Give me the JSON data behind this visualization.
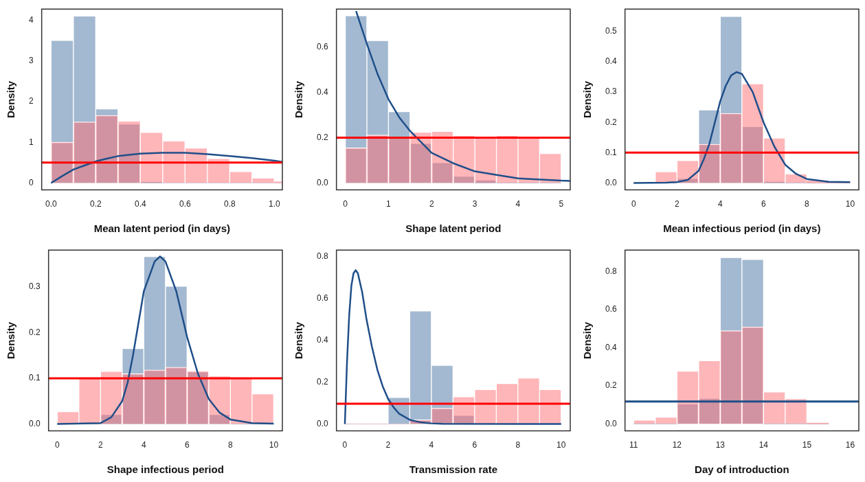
{
  "chart_data": [
    {
      "type": "histogram",
      "xlabel": "Mean latent period (in days)",
      "ylabel": "Density",
      "xlim": [
        -0.042,
        1.036
      ],
      "ylim": [
        -0.17,
        4.27
      ],
      "xticks": [
        {
          "value": 0,
          "label": "0.0"
        },
        {
          "value": 0.2,
          "label": "0.2"
        },
        {
          "value": 0.4,
          "label": "0.4"
        },
        {
          "value": 0.6,
          "label": "0.6"
        },
        {
          "value": 0.8,
          "label": "0.8"
        },
        {
          "value": 1,
          "label": "1.0"
        }
      ],
      "yticks": [
        0,
        1,
        2,
        3,
        4
      ],
      "bins": [
        0,
        0.1,
        0.2,
        0.3,
        0.4,
        0.5,
        0.6,
        0.7,
        0.8,
        0.9,
        1.0,
        1.1
      ],
      "series": [
        {
          "color": "#a3b9d1",
          "values": [
            3.5,
            4.1,
            1.82,
            1.45,
            0.02,
            0,
            0,
            0,
            0,
            0,
            0
          ]
        },
        {
          "color": "#ffb6b9",
          "values": [
            1.0,
            1.5,
            1.66,
            1.52,
            1.24,
            1.03,
            0.86,
            0.6,
            0.28,
            0.12,
            0.03
          ]
        },
        {
          "type": "line",
          "color": "#1f4e89",
          "x": [
            0,
            0.05,
            0.1,
            0.15,
            0.2,
            0.25,
            0.3,
            0.4,
            0.5,
            0.6,
            0.7,
            0.8,
            0.9,
            1.0,
            1.036
          ],
          "values": [
            0,
            0.17,
            0.33,
            0.43,
            0.53,
            0.6,
            0.66,
            0.72,
            0.74,
            0.74,
            0.71,
            0.66,
            0.61,
            0.55,
            0.52
          ]
        }
      ],
      "ref_lines": [
        {
          "axis": "y",
          "value": 0.5,
          "color": "#ff0000"
        }
      ]
    },
    {
      "type": "histogram",
      "xlabel": "Shape latent period",
      "ylabel": "Density",
      "xlim": [
        -0.205,
        5.21
      ],
      "ylim": [
        -0.031,
        0.769
      ],
      "xticks": [
        0,
        1,
        2,
        3,
        4,
        5
      ],
      "yticks": [
        {
          "value": 0,
          "label": "0.0"
        },
        {
          "value": 0.2,
          "label": "0.2"
        },
        {
          "value": 0.4,
          "label": "0.4"
        },
        {
          "value": 0.6,
          "label": "0.6"
        }
      ],
      "bins": [
        0,
        0.5,
        1,
        1.5,
        2,
        2.5,
        3,
        3.5,
        4,
        4.5,
        5
      ],
      "series": [
        {
          "color": "#a3b9d1",
          "values": [
            0.74,
            0.63,
            0.315,
            0.175,
            0.09,
            0.03,
            0.01,
            0,
            0,
            0
          ]
        },
        {
          "color": "#ffb6b9",
          "values": [
            0.155,
            0.212,
            0.2,
            0.224,
            0.228,
            0.21,
            0.205,
            0.21,
            0.203,
            0.13
          ]
        },
        {
          "type": "line",
          "color": "#1f4e89",
          "x": [
            0.25,
            0.5,
            0.75,
            1,
            1.25,
            1.5,
            2,
            2.5,
            3,
            4,
            5,
            5.21
          ],
          "values": [
            0.76,
            0.615,
            0.48,
            0.37,
            0.29,
            0.23,
            0.133,
            0.087,
            0.051,
            0.02,
            0.01,
            0.009
          ]
        }
      ],
      "ref_lines": [
        {
          "axis": "y",
          "value": 0.2,
          "color": "#ff0000"
        }
      ]
    },
    {
      "type": "histogram",
      "xlabel": "Mean infectious period (in days)",
      "ylabel": "Density",
      "xlim": [
        -0.4,
        10.4
      ],
      "ylim": [
        -0.023,
        0.574
      ],
      "xticks": [
        0,
        2,
        4,
        6,
        8,
        10
      ],
      "yticks": [
        {
          "value": 0,
          "label": "0.0"
        },
        {
          "value": 0.1,
          "label": "0.1"
        },
        {
          "value": 0.2,
          "label": "0.2"
        },
        {
          "value": 0.3,
          "label": "0.3"
        },
        {
          "value": 0.4,
          "label": "0.4"
        },
        {
          "value": 0.5,
          "label": "0.5"
        }
      ],
      "bins": [
        0,
        1,
        2,
        3,
        4,
        5,
        6,
        7,
        8,
        9,
        10
      ],
      "series": [
        {
          "color": "#a3b9d1",
          "values": [
            0,
            0,
            0.015,
            0.241,
            0.55,
            0.186,
            0.003,
            0,
            0,
            0
          ]
        },
        {
          "color": "#ffb6b9",
          "values": [
            0,
            0.037,
            0.074,
            0.128,
            0.23,
            0.327,
            0.148,
            0.03,
            0.007,
            0
          ]
        },
        {
          "type": "line",
          "color": "#1f4e89",
          "x": [
            0,
            1.5,
            2,
            2.5,
            3,
            3.25,
            3.5,
            4,
            4.25,
            4.5,
            4.75,
            5,
            5.5,
            6,
            6.5,
            7,
            7.5,
            8,
            9,
            10
          ],
          "values": [
            0,
            0.001,
            0.003,
            0.01,
            0.04,
            0.08,
            0.13,
            0.27,
            0.32,
            0.355,
            0.366,
            0.36,
            0.3,
            0.2,
            0.12,
            0.06,
            0.03,
            0.013,
            0.004,
            0.003
          ]
        }
      ],
      "ref_lines": [
        {
          "axis": "y",
          "value": 0.1,
          "color": "#ff0000"
        }
      ]
    },
    {
      "type": "histogram",
      "xlabel": "Shape infectious period",
      "ylabel": "Density",
      "xlim": [
        -0.4,
        10.4
      ],
      "ylim": [
        -0.015,
        0.38
      ],
      "xticks": [
        0,
        2,
        4,
        6,
        8,
        10
      ],
      "yticks": [
        {
          "value": 0,
          "label": "0.0"
        },
        {
          "value": 0.1,
          "label": "0.1"
        },
        {
          "value": 0.2,
          "label": "0.2"
        },
        {
          "value": 0.3,
          "label": "0.3"
        }
      ],
      "bins": [
        0,
        1,
        2,
        3,
        4,
        5,
        6,
        7,
        8,
        9,
        10
      ],
      "series": [
        {
          "color": "#a3b9d1",
          "values": [
            0,
            0,
            0.021,
            0.165,
            0.366,
            0.301,
            0.114,
            0.021,
            0,
            0
          ]
        },
        {
          "color": "#ffb6b9",
          "values": [
            0.027,
            0.1,
            0.115,
            0.11,
            0.118,
            0.124,
            0.116,
            0.105,
            0.1,
            0.066
          ]
        },
        {
          "type": "line",
          "color": "#1f4e89",
          "x": [
            0,
            2,
            2.5,
            3,
            3.25,
            3.5,
            4,
            4.5,
            4.75,
            5,
            5.5,
            6,
            6.5,
            7,
            7.5,
            8,
            9,
            10
          ],
          "values": [
            0,
            0.002,
            0.015,
            0.05,
            0.09,
            0.15,
            0.29,
            0.355,
            0.366,
            0.355,
            0.29,
            0.19,
            0.11,
            0.055,
            0.025,
            0.01,
            0.002,
            0.001
          ]
        }
      ],
      "ref_lines": [
        {
          "axis": "y",
          "value": 0.1,
          "color": "#ff0000"
        }
      ]
    },
    {
      "type": "histogram",
      "xlabel": "Transmission rate",
      "ylabel": "Density",
      "xlim": [
        -0.39,
        10.42
      ],
      "ylim": [
        -0.033,
        0.831
      ],
      "xticks": [
        0,
        2,
        4,
        6,
        8,
        10
      ],
      "yticks": [
        {
          "value": 0,
          "label": "0.0"
        },
        {
          "value": 0.2,
          "label": "0.2"
        },
        {
          "value": 0.4,
          "label": "0.4"
        },
        {
          "value": 0.6,
          "label": "0.6"
        },
        {
          "value": 0.8,
          "label": "0.8"
        }
      ],
      "bins": [
        0,
        1,
        2,
        3,
        4,
        5,
        6,
        7,
        8,
        9,
        10
      ],
      "series": [
        {
          "color": "#a3b9d1",
          "values": [
            0,
            0,
            0.127,
            0.54,
            0.28,
            0.042,
            0,
            0,
            0,
            0
          ]
        },
        {
          "color": "#ffb6b9",
          "values": [
            0,
            0,
            0,
            0.02,
            0.075,
            0.13,
            0.165,
            0.193,
            0.22,
            0.165
          ]
        },
        {
          "type": "line",
          "color": "#1f4e89",
          "x": [
            0,
            0.05,
            0.1,
            0.2,
            0.3,
            0.4,
            0.5,
            0.6,
            0.8,
            1.0,
            1.25,
            1.5,
            1.75,
            2,
            2.25,
            2.5,
            3,
            3.5,
            4,
            4.5,
            10
          ],
          "values": [
            0,
            0.15,
            0.3,
            0.52,
            0.66,
            0.72,
            0.735,
            0.72,
            0.63,
            0.5,
            0.37,
            0.26,
            0.18,
            0.12,
            0.08,
            0.05,
            0.02,
            0.008,
            0.003,
            0.001,
            0
          ]
        }
      ],
      "ref_lines": [
        {
          "axis": "y",
          "value": 0.097,
          "color": "#ff0000"
        }
      ]
    },
    {
      "type": "histogram",
      "xlabel": "Day of introduction",
      "ylabel": "Density",
      "xlim": [
        10.8,
        16.2
      ],
      "ylim": [
        -0.037,
        0.914
      ],
      "xticks": [
        11,
        12,
        13,
        14,
        15,
        16
      ],
      "yticks": [
        {
          "value": 0,
          "label": "0.0"
        },
        {
          "value": 0.2,
          "label": "0.2"
        },
        {
          "value": 0.4,
          "label": "0.4"
        },
        {
          "value": 0.6,
          "label": "0.6"
        },
        {
          "value": 0.8,
          "label": "0.8"
        }
      ],
      "bins": [
        11,
        11.5,
        12,
        12.5,
        13,
        13.5,
        14,
        14.5,
        15,
        15.5
      ],
      "series": [
        {
          "color": "#a3b9d1",
          "values": [
            0,
            0,
            0.105,
            0.135,
            0.875,
            0.865,
            0,
            0,
            0
          ]
        },
        {
          "color": "#ffb6b9",
          "values": [
            0.02,
            0.035,
            0.277,
            0.332,
            0.49,
            0.51,
            0.168,
            0.133,
            0.005
          ]
        }
      ],
      "ref_lines": [
        {
          "axis": "y",
          "value": 0.118,
          "color": "#1f4e89"
        }
      ]
    }
  ]
}
